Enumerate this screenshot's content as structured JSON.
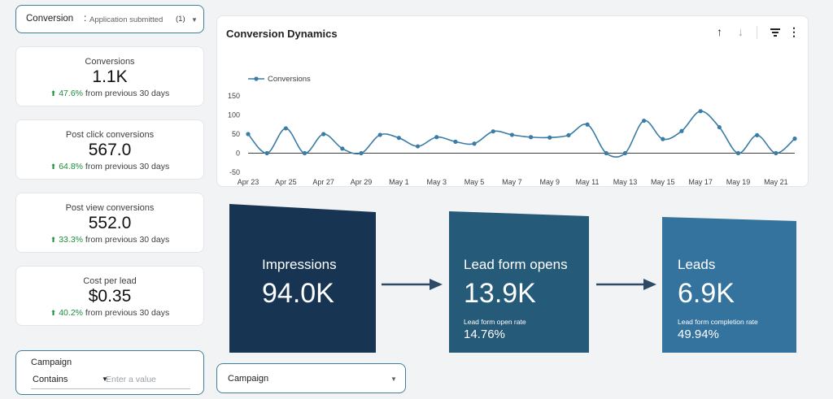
{
  "conversion_filter": {
    "label": "Conversion",
    "value": "Application submitted",
    "count": "(1)"
  },
  "kpis": [
    {
      "label": "Conversions",
      "value": "1.1K",
      "delta": "47.6%",
      "suffix": "from previous 30 days"
    },
    {
      "label": "Post click conversions",
      "value": "567.0",
      "delta": "64.8%",
      "suffix": "from previous 30 days"
    },
    {
      "label": "Post view conversions",
      "value": "552.0",
      "delta": "33.3%",
      "suffix": "from previous 30 days"
    },
    {
      "label": "Cost per lead",
      "value": "$0.35",
      "delta": "40.2%",
      "suffix": "from previous 30 days"
    }
  ],
  "campaign_filter_left": {
    "label": "Campaign",
    "operator": "Contains",
    "placeholder": "Enter a value"
  },
  "campaign_dropdown": {
    "label": "Campaign"
  },
  "chart": {
    "title": "Conversion Dynamics",
    "icons": [
      "arrow-up-icon",
      "arrow-down-icon",
      "filter-icon",
      "more-vert-icon"
    ]
  },
  "chart_data": {
    "type": "line",
    "title": "Conversion Dynamics",
    "xlabel": "",
    "ylabel": "",
    "ylim": [
      -50,
      150
    ],
    "yticks": [
      "150",
      "100",
      "50",
      "0",
      "-50"
    ],
    "grid": false,
    "legend": "top-left",
    "x_tick_labels": [
      "Apr 23",
      "Apr 25",
      "Apr 27",
      "Apr 29",
      "May 1",
      "May 3",
      "May 5",
      "May 7",
      "May 9",
      "May 11",
      "May 13",
      "May 15",
      "May 17",
      "May 19",
      "May 21"
    ],
    "x": [
      "Apr 23",
      "Apr 24",
      "Apr 25",
      "Apr 26",
      "Apr 27",
      "Apr 28",
      "Apr 29",
      "Apr 30",
      "May 1",
      "May 2",
      "May 3",
      "May 4",
      "May 5",
      "May 6",
      "May 7",
      "May 8",
      "May 9",
      "May 10",
      "May 11",
      "May 12",
      "May 13",
      "May 14",
      "May 15",
      "May 16",
      "May 17",
      "May 18",
      "May 19",
      "May 20",
      "May 21",
      "May 22"
    ],
    "series": [
      {
        "name": "Conversions",
        "color": "#3a7ca5",
        "values": [
          50,
          0,
          65,
          0,
          50,
          12,
          0,
          48,
          40,
          18,
          42,
          30,
          25,
          57,
          48,
          42,
          41,
          47,
          75,
          0,
          0,
          85,
          37,
          58,
          110,
          68,
          0,
          47,
          0,
          38
        ]
      }
    ]
  },
  "funnel": [
    {
      "title": "Impressions",
      "value": "94.0K",
      "rate_label": "",
      "rate_value": "",
      "color": "#173552"
    },
    {
      "title": "Lead form opens",
      "value": "13.9K",
      "rate_label": "Lead form open rate",
      "rate_value": "14.76%",
      "color": "#255a78"
    },
    {
      "title": "Leads",
      "value": "6.9K",
      "rate_label": "Lead form completion rate",
      "rate_value": "49.94%",
      "color": "#34739d"
    }
  ],
  "colors": {
    "accent": "#3f7f9a",
    "positive": "#1e8e3e",
    "arrow": "#2e4a66"
  }
}
